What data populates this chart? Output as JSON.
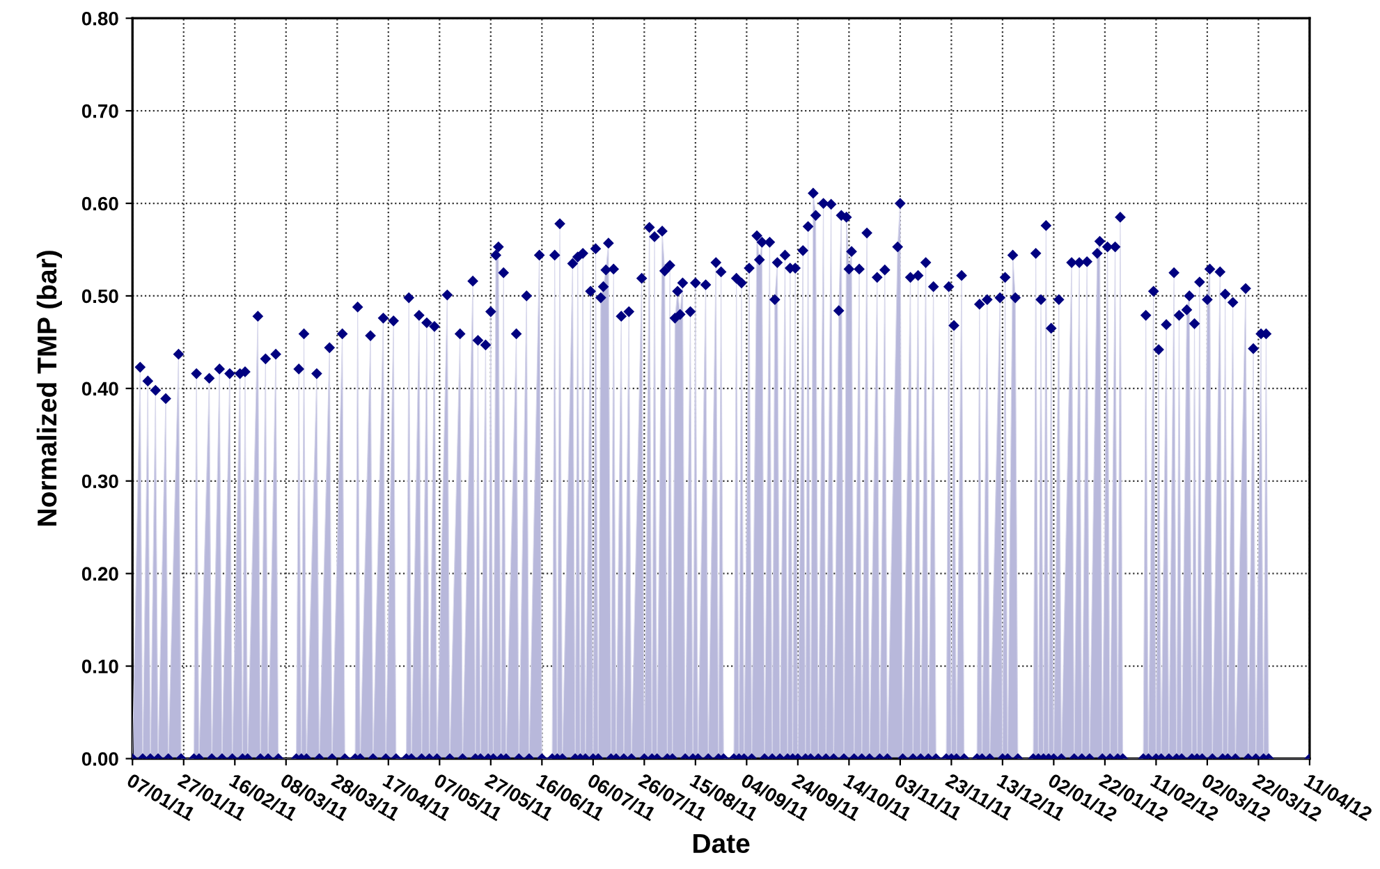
{
  "chart_data": {
    "type": "area",
    "xlabel": "Date",
    "ylabel": "Normalized TMP (bar)",
    "xlim": [
      "2011-01-07",
      "2012-04-11"
    ],
    "xticks": [
      {
        "value": "2011-01-07",
        "label": "07/01/11"
      },
      {
        "value": "2011-01-27",
        "label": "27/01/11"
      },
      {
        "value": "2011-02-16",
        "label": "16/02/11"
      },
      {
        "value": "2011-03-08",
        "label": "08/03/11"
      },
      {
        "value": "2011-03-28",
        "label": "28/03/11"
      },
      {
        "value": "2011-04-17",
        "label": "17/04/11"
      },
      {
        "value": "2011-05-07",
        "label": "07/05/11"
      },
      {
        "value": "2011-05-27",
        "label": "27/05/11"
      },
      {
        "value": "2011-06-16",
        "label": "16/06/11"
      },
      {
        "value": "2011-07-06",
        "label": "06/07/11"
      },
      {
        "value": "2011-07-26",
        "label": "26/07/11"
      },
      {
        "value": "2011-08-15",
        "label": "15/08/11"
      },
      {
        "value": "2011-09-04",
        "label": "04/09/11"
      },
      {
        "value": "2011-09-24",
        "label": "24/09/11"
      },
      {
        "value": "2011-10-14",
        "label": "14/10/11"
      },
      {
        "value": "2011-11-03",
        "label": "03/11/11"
      },
      {
        "value": "2011-11-23",
        "label": "23/11/11"
      },
      {
        "value": "2011-12-13",
        "label": "13/12/11"
      },
      {
        "value": "2012-01-02",
        "label": "02/01/12"
      },
      {
        "value": "2012-01-22",
        "label": "22/01/12"
      },
      {
        "value": "2012-02-11",
        "label": "11/02/12"
      },
      {
        "value": "2012-03-02",
        "label": "02/03/12"
      },
      {
        "value": "2012-03-22",
        "label": "22/03/12"
      },
      {
        "value": "2012-04-11",
        "label": "11/04/12"
      }
    ],
    "ylim": [
      0,
      0.8
    ],
    "yticks": [
      {
        "value": 0,
        "label": "0.00"
      },
      {
        "value": 0.1,
        "label": "0.10"
      },
      {
        "value": 0.2,
        "label": "0.20"
      },
      {
        "value": 0.3,
        "label": "0.30"
      },
      {
        "value": 0.4,
        "label": "0.40"
      },
      {
        "value": 0.5,
        "label": "0.50"
      },
      {
        "value": 0.6,
        "label": "0.60"
      },
      {
        "value": 0.7,
        "label": "0.70"
      },
      {
        "value": 0.8,
        "label": "0.80"
      }
    ],
    "grid": true,
    "marker": "diamond",
    "line_style": "solid",
    "series": [
      {
        "color": "#000080",
        "x": [
          "2011-01-07",
          "2011-01-10",
          "2011-01-11",
          "2011-01-13",
          "2011-01-14",
          "2011-01-16",
          "2011-01-17",
          "2011-01-20",
          "2011-01-21",
          "2011-01-25",
          "2011-01-26",
          "2011-01-31",
          "2011-02-01",
          "2011-02-02",
          "2011-02-06",
          "2011-02-07",
          "2011-02-10",
          "2011-02-11",
          "2011-02-14",
          "2011-02-15",
          "2011-02-18",
          "2011-02-19",
          "2011-02-20",
          "2011-02-21",
          "2011-02-25",
          "2011-02-26",
          "2011-02-28",
          "2011-03-01",
          "2011-03-04",
          "2011-03-05",
          "2011-03-12",
          "2011-03-13",
          "2011-03-14",
          "2011-03-15",
          "2011-03-16",
          "2011-03-20",
          "2011-03-21",
          "2011-03-25",
          "2011-03-26",
          "2011-03-30",
          "2011-03-31",
          "2011-04-04",
          "2011-04-05",
          "2011-04-06",
          "2011-04-10",
          "2011-04-11",
          "2011-04-15",
          "2011-04-16",
          "2011-04-19",
          "2011-04-20",
          "2011-04-24",
          "2011-04-25",
          "2011-04-26",
          "2011-04-29",
          "2011-04-30",
          "2011-05-02",
          "2011-05-03",
          "2011-05-05",
          "2011-05-06",
          "2011-05-10",
          "2011-05-11",
          "2011-05-15",
          "2011-05-16",
          "2011-05-20",
          "2011-05-21",
          "2011-05-22",
          "2011-05-23",
          "2011-05-25",
          "2011-05-26",
          "2011-05-27",
          "2011-05-28",
          "2011-05-29",
          "2011-05-30",
          "2011-05-31",
          "2011-06-01",
          "2011-06-02",
          "2011-06-06",
          "2011-06-07",
          "2011-06-10",
          "2011-06-11",
          "2011-06-15",
          "2011-06-16",
          "2011-06-20",
          "2011-06-21",
          "2011-06-22",
          "2011-06-23",
          "2011-06-24",
          "2011-06-28",
          "2011-06-29",
          "2011-06-30",
          "2011-07-01",
          "2011-07-02",
          "2011-07-03",
          "2011-07-05",
          "2011-07-06",
          "2011-07-07",
          "2011-07-08",
          "2011-07-09",
          "2011-07-10",
          "2011-07-11",
          "2011-07-12",
          "2011-07-13",
          "2011-07-14",
          "2011-07-15",
          "2011-07-17",
          "2011-07-18",
          "2011-07-20",
          "2011-07-21",
          "2011-07-25",
          "2011-07-26",
          "2011-07-28",
          "2011-07-29",
          "2011-07-30",
          "2011-07-31",
          "2011-08-02",
          "2011-08-03",
          "2011-08-04",
          "2011-08-05",
          "2011-08-06",
          "2011-08-07",
          "2011-08-08",
          "2011-08-09",
          "2011-08-10",
          "2011-08-11",
          "2011-08-13",
          "2011-08-14",
          "2011-08-15",
          "2011-08-16",
          "2011-08-19",
          "2011-08-20",
          "2011-08-23",
          "2011-08-24",
          "2011-08-25",
          "2011-08-26",
          "2011-08-30",
          "2011-08-31",
          "2011-09-01",
          "2011-09-02",
          "2011-09-03",
          "2011-09-05",
          "2011-09-06",
          "2011-09-08",
          "2011-09-09",
          "2011-09-10",
          "2011-09-11",
          "2011-09-13",
          "2011-09-14",
          "2011-09-15",
          "2011-09-16",
          "2011-09-17",
          "2011-09-19",
          "2011-09-20",
          "2011-09-21",
          "2011-09-22",
          "2011-09-23",
          "2011-09-24",
          "2011-09-26",
          "2011-09-27",
          "2011-09-28",
          "2011-09-29",
          "2011-09-30",
          "2011-10-01",
          "2011-10-02",
          "2011-10-04",
          "2011-10-05",
          "2011-10-07",
          "2011-10-08",
          "2011-10-10",
          "2011-10-11",
          "2011-10-12",
          "2011-10-13",
          "2011-10-14",
          "2011-10-15",
          "2011-10-16",
          "2011-10-18",
          "2011-10-19",
          "2011-10-21",
          "2011-10-22",
          "2011-10-25",
          "2011-10-26",
          "2011-10-28",
          "2011-10-29",
          "2011-11-02",
          "2011-11-03",
          "2011-11-04",
          "2011-11-07",
          "2011-11-08",
          "2011-11-10",
          "2011-11-11",
          "2011-11-13",
          "2011-11-14",
          "2011-11-16",
          "2011-11-17",
          "2011-11-21",
          "2011-11-22",
          "2011-11-23",
          "2011-11-24",
          "2011-11-25",
          "2011-11-27",
          "2011-11-28",
          "2011-12-03",
          "2011-12-04",
          "2011-12-05",
          "2011-12-07",
          "2011-12-08",
          "2011-12-12",
          "2011-12-13",
          "2011-12-14",
          "2011-12-15",
          "2011-12-17",
          "2011-12-18",
          "2011-12-19",
          "2011-12-25",
          "2011-12-26",
          "2011-12-27",
          "2011-12-28",
          "2011-12-29",
          "2011-12-30",
          "2011-12-31",
          "2012-01-01",
          "2012-01-02",
          "2012-01-04",
          "2012-01-05",
          "2012-01-09",
          "2012-01-10",
          "2012-01-12",
          "2012-01-13",
          "2012-01-15",
          "2012-01-16",
          "2012-01-19",
          "2012-01-20",
          "2012-01-21",
          "2012-01-23",
          "2012-01-24",
          "2012-01-26",
          "2012-01-27",
          "2012-01-28",
          "2012-01-29",
          "2012-02-06",
          "2012-02-07",
          "2012-02-08",
          "2012-02-10",
          "2012-02-11",
          "2012-02-12",
          "2012-02-13",
          "2012-02-15",
          "2012-02-16",
          "2012-02-18",
          "2012-02-19",
          "2012-02-20",
          "2012-02-21",
          "2012-02-23",
          "2012-02-24",
          "2012-02-25",
          "2012-02-26",
          "2012-02-27",
          "2012-02-28",
          "2012-02-29",
          "2012-03-02",
          "2012-03-03",
          "2012-03-04",
          "2012-03-07",
          "2012-03-08",
          "2012-03-09",
          "2012-03-10",
          "2012-03-12",
          "2012-03-13",
          "2012-03-17",
          "2012-03-18",
          "2012-03-20",
          "2012-03-21",
          "2012-03-23",
          "2012-03-24",
          "2012-03-25",
          "2012-03-26",
          "2012-04-11"
        ],
        "values": [
          0,
          0.423,
          0,
          0.408,
          0,
          0.398,
          0,
          0.389,
          0,
          0.437,
          0,
          0,
          0.416,
          0,
          0.411,
          0,
          0.421,
          0,
          0.416,
          0,
          0.416,
          0,
          0.418,
          0,
          0.478,
          0,
          0.432,
          0,
          0.437,
          0,
          0,
          0.421,
          0,
          0.459,
          0,
          0.416,
          0,
          0.444,
          0,
          0.459,
          0,
          0,
          0.488,
          0,
          0.457,
          0,
          0.476,
          0,
          0.473,
          0,
          0,
          0.498,
          0,
          0.479,
          0,
          0.471,
          0,
          0.467,
          0,
          0.501,
          0,
          0.459,
          0,
          0.516,
          0,
          0.452,
          0,
          0.447,
          0,
          0.483,
          0,
          0.544,
          0.553,
          0,
          0.525,
          0,
          0.459,
          0,
          0.5,
          0,
          0.544,
          0,
          0,
          0.544,
          0,
          0.578,
          0,
          0.535,
          0,
          0.542,
          0,
          0.546,
          0,
          0.505,
          0,
          0.551,
          0,
          0.498,
          0.51,
          0.528,
          0.557,
          0,
          0.529,
          0,
          0.478,
          0,
          0.483,
          0,
          0.519,
          0,
          0.574,
          0,
          0.564,
          0,
          0.57,
          0.527,
          0,
          0.533,
          0,
          0.476,
          0.505,
          0.48,
          0.514,
          0,
          0.483,
          0,
          0.514,
          0,
          0.512,
          0,
          0.536,
          0,
          0.526,
          0,
          0,
          0.519,
          0,
          0.514,
          0,
          0.53,
          0,
          0.565,
          0.539,
          0.558,
          0,
          0.558,
          0,
          0.496,
          0.536,
          0,
          0.544,
          0,
          0.53,
          0,
          0.53,
          0,
          0.549,
          0,
          0.575,
          0,
          0.611,
          0.587,
          0,
          0.6,
          0,
          0.599,
          0,
          0.484,
          0.587,
          0,
          0.585,
          0.529,
          0.548,
          0,
          0.529,
          0,
          0.568,
          0,
          0.52,
          0,
          0.528,
          0,
          0.553,
          0.6,
          0,
          0.52,
          0,
          0.522,
          0,
          0.536,
          0,
          0.51,
          0,
          0,
          0.51,
          0,
          0.468,
          0,
          0.522,
          0,
          0,
          0.491,
          0,
          0.496,
          0,
          0.498,
          0,
          0.52,
          0,
          0.544,
          0.498,
          0,
          0,
          0.546,
          0,
          0.496,
          0,
          0.576,
          0,
          0.465,
          0,
          0.496,
          0,
          0.536,
          0,
          0.536,
          0,
          0.537,
          0,
          0.546,
          0.559,
          0,
          0.553,
          0,
          0.553,
          0,
          0.585,
          0,
          0,
          0.479,
          0,
          0.505,
          0,
          0.442,
          0,
          0.469,
          0,
          0.525,
          0,
          0.479,
          0,
          0.485,
          0.5,
          0,
          0.47,
          0,
          0.515,
          0,
          0.496,
          0.529,
          0,
          0.526,
          0,
          0.502,
          0,
          0.493,
          0,
          0.508,
          0,
          0.443,
          0,
          0.459,
          0,
          0.459,
          0,
          0
        ]
      }
    ]
  }
}
